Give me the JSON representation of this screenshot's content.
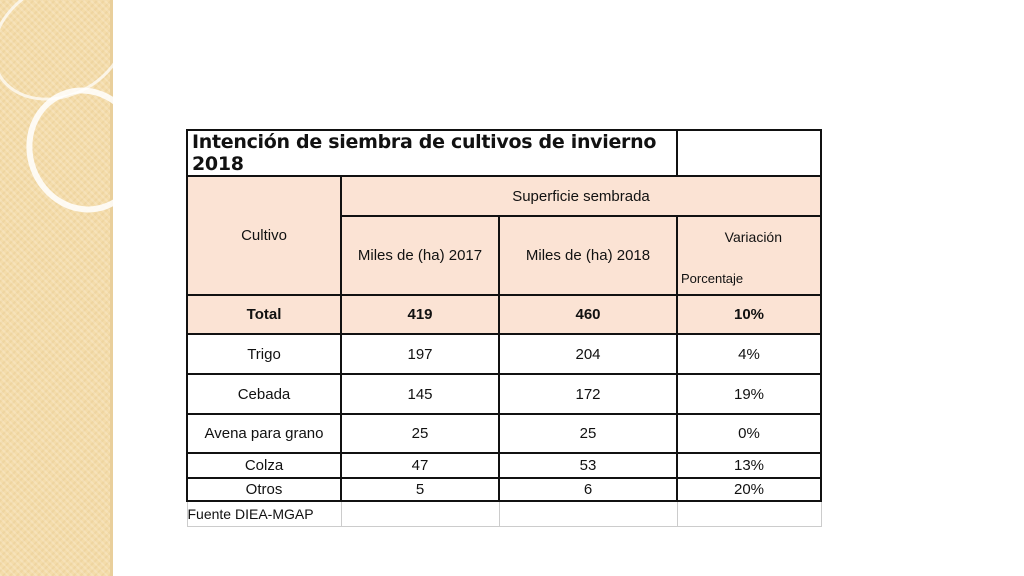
{
  "table": {
    "title": "Intención de siembra de cultivos de invierno 2018",
    "header": {
      "cultivo": "Cultivo",
      "superficie": "Superficie sembrada",
      "col2017": "Miles de (ha) 2017",
      "col2018": "Miles de (ha) 2018",
      "variacion": "Variación",
      "porcentaje": "Porcentaje"
    },
    "rows": [
      [
        "Total",
        "419",
        "460",
        "10%"
      ],
      [
        "Trigo",
        "197",
        "204",
        "4%"
      ],
      [
        "Cebada",
        "145",
        "172",
        "19%"
      ],
      [
        "Avena para grano",
        "25",
        "25",
        "0%"
      ],
      [
        "Colza",
        "47",
        "53",
        "13%"
      ],
      [
        "Otros",
        "5",
        "6",
        "20%"
      ]
    ],
    "source": "Fuente DIEA-MGAP"
  }
}
